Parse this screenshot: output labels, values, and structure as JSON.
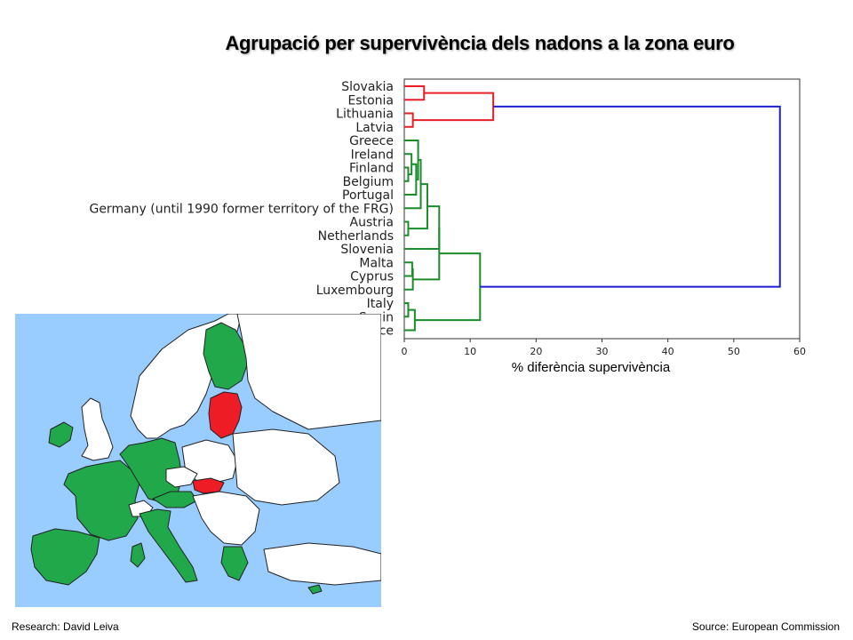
{
  "slide": {
    "title": "Agrupació per supervivència dels nadons a la zona euro",
    "footer_left": "Research: David Leiva",
    "footer_right": "Source: European Commission"
  },
  "chart_data": {
    "type": "dendrogram",
    "title": "Agrupació per supervivència dels nadons a la zona euro",
    "xlabel": "% diferència supervivència",
    "ylabel": "",
    "xlim": [
      0,
      60
    ],
    "xticks": [
      0,
      10,
      20,
      30,
      40,
      50,
      60
    ],
    "grid": false,
    "leaves": [
      "Slovakia",
      "Estonia",
      "Lithuania",
      "Latvia",
      "Greece",
      "Ireland",
      "Finland",
      "Belgium",
      "Portugal",
      "Germany (until 1990 former territory of the FRG)",
      "Austria",
      "Netherlands",
      "Slovenia",
      "Malta",
      "Cyprus",
      "Luxembourg",
      "Italy",
      "Spain",
      "France"
    ],
    "merges": [
      {
        "a": "L0",
        "b": "L1",
        "height": 3.0,
        "id": "M1"
      },
      {
        "a": "L2",
        "b": "L3",
        "height": 1.3,
        "id": "M2"
      },
      {
        "a": "M1",
        "b": "M2",
        "height": 13.5,
        "id": "M3"
      },
      {
        "a": "L6",
        "b": "L7",
        "height": 0.6,
        "id": "M4"
      },
      {
        "a": "L5",
        "b": "M4",
        "height": 1.1,
        "id": "M5"
      },
      {
        "a": "M5",
        "b": "L8",
        "height": 1.8,
        "id": "M6"
      },
      {
        "a": "L4",
        "b": "M6",
        "height": 2.1,
        "id": "M7"
      },
      {
        "a": "M7",
        "b": "L9",
        "height": 2.5,
        "id": "M8"
      },
      {
        "a": "L10",
        "b": "L11",
        "height": 0.6,
        "id": "M9"
      },
      {
        "a": "M8",
        "b": "M9",
        "height": 3.5,
        "id": "M10"
      },
      {
        "a": "M10",
        "b": "L12",
        "height": 5.3,
        "id": "M11"
      },
      {
        "a": "L13",
        "b": "L14",
        "height": 1.2,
        "id": "M12"
      },
      {
        "a": "M12",
        "b": "L15",
        "height": 1.3,
        "id": "M13"
      },
      {
        "a": "M11",
        "b": "M13",
        "height": 5.3,
        "id": "M14"
      },
      {
        "a": "L16",
        "b": "L17",
        "height": 0.6,
        "id": "M15"
      },
      {
        "a": "M15",
        "b": "L18",
        "height": 1.6,
        "id": "M16"
      },
      {
        "a": "M14",
        "b": "M16",
        "height": 11.5,
        "id": "M17"
      },
      {
        "a": "M3",
        "b": "M17",
        "height": 57.0,
        "id": "M18"
      }
    ],
    "cluster_colors": {
      "M1": "#e81f26",
      "M2": "#e81f26",
      "M3": "#e81f26",
      "M4": "#1a8c2a",
      "M5": "#1a8c2a",
      "M6": "#1a8c2a",
      "M7": "#1a8c2a",
      "M8": "#1a8c2a",
      "M9": "#1a8c2a",
      "M10": "#1a8c2a",
      "M11": "#1a8c2a",
      "M12": "#1a8c2a",
      "M13": "#1a8c2a",
      "M14": "#1a8c2a",
      "M15": "#1a8c2a",
      "M16": "#1a8c2a",
      "M17": "#1a8c2a",
      "M18": "#1f1fd6"
    }
  },
  "map": {
    "colors": {
      "sea": "#99ccff",
      "eurozone": "#21a84a",
      "highlight": "#ee1c24",
      "other": "#ffffff",
      "border": "#222222"
    }
  }
}
